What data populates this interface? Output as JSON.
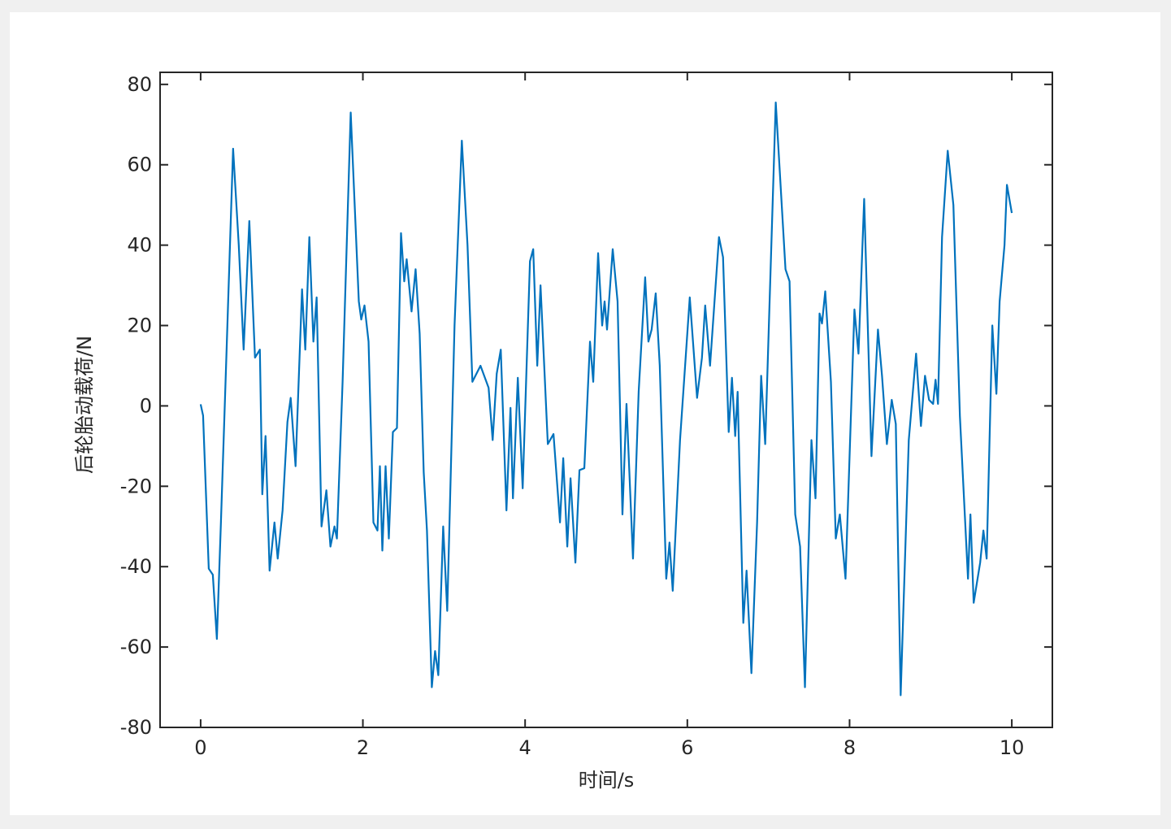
{
  "chart_data": {
    "type": "line",
    "x_label": "时间/s",
    "y_label": "后轮胎动载荷/N",
    "color": "#0072bd",
    "xlim": [
      -0.5,
      10.5
    ],
    "ylim": [
      -80,
      83
    ],
    "xticks": [
      0,
      2,
      4,
      6,
      8,
      10
    ],
    "yticks": [
      -80,
      -60,
      -40,
      -20,
      0,
      20,
      40,
      60,
      80
    ],
    "x": [
      0,
      0.03,
      0.1,
      0.15,
      0.2,
      0.25,
      0.32,
      0.4,
      0.47,
      0.53,
      0.6,
      0.67,
      0.73,
      0.76,
      0.8,
      0.85,
      0.91,
      0.95,
      1.01,
      1.07,
      1.11,
      1.17,
      1.25,
      1.29,
      1.34,
      1.39,
      1.43,
      1.49,
      1.55,
      1.6,
      1.65,
      1.68,
      1.75,
      1.85,
      1.95,
      1.98,
      2.02,
      2.07,
      2.13,
      2.18,
      2.21,
      2.24,
      2.28,
      2.32,
      2.37,
      2.42,
      2.47,
      2.51,
      2.54,
      2.6,
      2.65,
      2.7,
      2.75,
      2.79,
      2.85,
      2.89,
      2.93,
      2.99,
      3.04,
      3.13,
      3.22,
      3.29,
      3.35,
      3.45,
      3.55,
      3.6,
      3.65,
      3.7,
      3.77,
      3.82,
      3.85,
      3.91,
      3.97,
      4.06,
      4.1,
      4.15,
      4.19,
      4.28,
      4.35,
      4.43,
      4.47,
      4.52,
      4.56,
      4.62,
      4.67,
      4.73,
      4.8,
      4.84,
      4.9,
      4.95,
      4.98,
      5.01,
      5.08,
      5.14,
      5.2,
      5.25,
      5.33,
      5.4,
      5.48,
      5.52,
      5.56,
      5.61,
      5.66,
      5.74,
      5.78,
      5.82,
      5.91,
      6.03,
      6.12,
      6.18,
      6.22,
      6.28,
      6.39,
      6.44,
      6.51,
      6.55,
      6.59,
      6.62,
      6.69,
      6.73,
      6.79,
      6.86,
      6.91,
      6.96,
      7.09,
      7.21,
      7.26,
      7.33,
      7.39,
      7.45,
      7.53,
      7.58,
      7.63,
      7.66,
      7.7,
      7.77,
      7.83,
      7.88,
      7.95,
      8.06,
      8.11,
      8.18,
      8.27,
      8.35,
      8.4,
      8.46,
      8.52,
      8.57,
      8.63,
      8.73,
      8.82,
      8.88,
      8.93,
      8.98,
      9.03,
      9.06,
      9.09,
      9.14,
      9.21,
      9.28,
      9.36,
      9.46,
      9.49,
      9.53,
      9.61,
      9.65,
      9.69,
      9.76,
      9.81,
      9.85,
      9.91,
      9.94,
      10
    ],
    "values": [
      0.4,
      -2.4,
      -40.5,
      -42,
      -58,
      -29,
      14,
      64,
      40,
      14,
      46,
      12,
      14,
      -22,
      -7.5,
      -41,
      -29,
      -38,
      -26,
      -4,
      2,
      -15,
      29,
      14,
      42,
      16,
      27,
      -30,
      -21,
      -35,
      -30,
      -33,
      6,
      73,
      26,
      21.5,
      25,
      16,
      -29,
      -31,
      -15,
      -36,
      -15,
      -33,
      -6.5,
      -5.5,
      43,
      31,
      36.5,
      23.5,
      34,
      18,
      -16.5,
      -31,
      -70,
      -61,
      -67,
      -30,
      -51,
      20,
      66,
      40,
      6,
      10,
      4.5,
      -8.5,
      8,
      14,
      -26,
      -0.5,
      -23,
      7,
      -20.5,
      36,
      39,
      10,
      30,
      -9.5,
      -7,
      -29,
      -13,
      -35,
      -18,
      -39,
      -16,
      -15.5,
      16,
      6,
      38,
      20,
      26,
      19,
      39,
      26,
      -27,
      0.5,
      -38,
      3.5,
      32,
      16,
      19,
      28,
      10,
      -43,
      -34,
      -46,
      -8.5,
      27,
      2,
      12,
      25,
      10,
      42,
      37,
      -6.5,
      7,
      -7.5,
      3.5,
      -54,
      -41,
      -66.5,
      -29,
      7.5,
      -9.5,
      75.5,
      34,
      31,
      -27,
      -35,
      -70,
      -8.5,
      -23,
      23,
      20.5,
      28.5,
      6,
      -33,
      -27,
      -43,
      24,
      13,
      51.5,
      -12.5,
      19,
      7.5,
      -9.5,
      1.5,
      -4.5,
      -72,
      -8.5,
      13,
      -5,
      7.5,
      1.5,
      0.5,
      6.5,
      0.5,
      42,
      63.5,
      50,
      -2.5,
      -43,
      -27,
      -49,
      -39,
      -31,
      -38,
      20,
      3,
      26,
      40,
      55,
      48
    ]
  }
}
